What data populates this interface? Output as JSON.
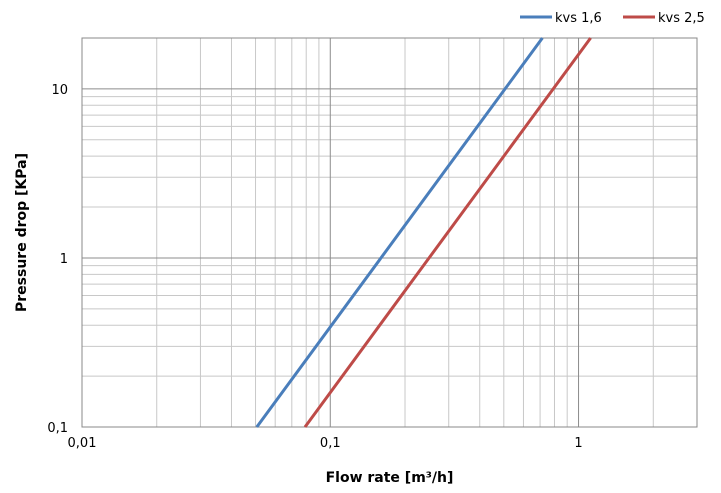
{
  "chart_data": {
    "type": "line",
    "xlabel": "Flow rate [m³/h]",
    "ylabel": "Pressure drop [KPa]",
    "x_scale": "log",
    "y_scale": "log",
    "xlim": [
      0.01,
      3
    ],
    "ylim": [
      0.1,
      20
    ],
    "x_ticks": [
      {
        "value": 0.01,
        "label": "0,01"
      },
      {
        "value": 0.1,
        "label": "0,1"
      },
      {
        "value": 1,
        "label": "1"
      }
    ],
    "y_ticks": [
      {
        "value": 0.1,
        "label": "0,1"
      },
      {
        "value": 1,
        "label": "1"
      },
      {
        "value": 10,
        "label": "10"
      }
    ],
    "grid": true,
    "legend_position": "top-right",
    "series": [
      {
        "name": "kvs 1,6",
        "color": "#4a7ebb",
        "x": [
          0.0506,
          0.1601,
          0.7155
        ],
        "y": [
          0.1,
          1,
          20
        ]
      },
      {
        "name": "kvs 2,5",
        "color": "#be4b48",
        "x": [
          0.0791,
          0.25,
          1.118
        ],
        "y": [
          0.1,
          1,
          20
        ]
      }
    ]
  }
}
